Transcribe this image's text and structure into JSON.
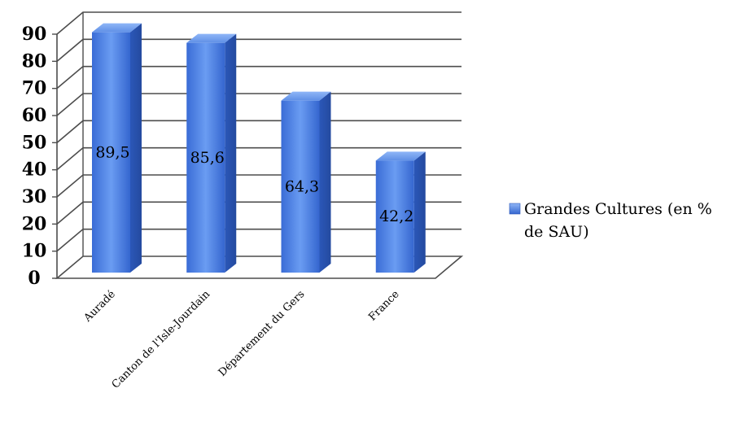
{
  "chart_data": {
    "type": "bar",
    "categories": [
      "Auradé",
      "Canton de l'Isle-Jourdain",
      "Département du Gers",
      "France"
    ],
    "series": [
      {
        "name": "Grandes Cultures (en % de SAU)",
        "values": [
          89.5,
          85.6,
          64.3,
          42.2
        ]
      }
    ],
    "data_labels": [
      "89,5",
      "85,6",
      "64,3",
      "42,2"
    ],
    "ylim": [
      0,
      90
    ],
    "yticks": [
      0,
      10,
      20,
      30,
      40,
      50,
      60,
      70,
      80,
      90
    ],
    "grid": true,
    "legend_position": "right",
    "legend_lines": [
      "Grandes Cultures (en %",
      "de SAU)"
    ],
    "bar_color": "#4a7fe0",
    "grid_color": "#4d4d4d"
  }
}
